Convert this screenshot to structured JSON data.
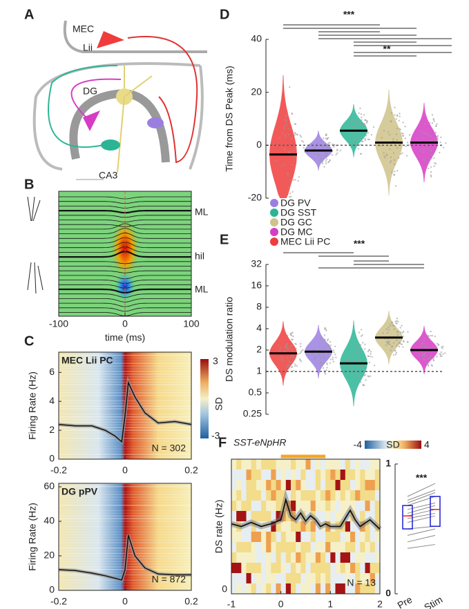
{
  "A": {
    "label": "A",
    "regions": [
      "MEC",
      "Lii",
      "DG",
      "CA3"
    ]
  },
  "B": {
    "label": "B",
    "layers": [
      "ML",
      "hil",
      "ML"
    ],
    "x_label": "time (ms)",
    "xlim": [
      -100,
      100
    ],
    "xticks": [
      -100,
      0,
      100
    ]
  },
  "C": {
    "label": "C",
    "colorbar": {
      "label": "SD",
      "ticks": [
        3,
        -3
      ]
    },
    "plots": [
      {
        "title": "MEC Lii PC",
        "y_label": "Firing Rate (Hz)",
        "n_label": "N = 302",
        "xlim": [
          -0.2,
          0.2
        ],
        "xticks": [
          -0.2,
          0,
          0.2
        ],
        "ylim": [
          0,
          7.4
        ],
        "yticks": [
          0,
          2,
          4,
          6
        ],
        "x": [
          -0.2,
          -0.15,
          -0.1,
          -0.06,
          -0.03,
          -0.01,
          0,
          0.01,
          0.03,
          0.06,
          0.1,
          0.15,
          0.2
        ],
        "values": [
          2.4,
          2.3,
          2.3,
          2.0,
          1.6,
          1.2,
          3.0,
          5.3,
          4.3,
          3.2,
          2.5,
          2.6,
          2.4
        ]
      },
      {
        "title": "DG pPV",
        "y_label": "Firing Rate (Hz)",
        "n_label": "N = 872",
        "xlim": [
          -0.2,
          0.2
        ],
        "xticks": [
          -0.2,
          0,
          0.2
        ],
        "ylim": [
          0,
          62
        ],
        "yticks": [
          0,
          20,
          40,
          60
        ],
        "x": [
          -0.2,
          -0.15,
          -0.1,
          -0.06,
          -0.03,
          -0.01,
          0,
          0.01,
          0.03,
          0.06,
          0.1,
          0.15,
          0.2
        ],
        "values": [
          12,
          11.5,
          10,
          8.5,
          7,
          6,
          12,
          32,
          20,
          13,
          9.5,
          9,
          9
        ]
      }
    ]
  },
  "D": {
    "label": "D",
    "y_label": "Time from DS Peak (ms)",
    "ylim": [
      -20,
      40
    ],
    "yticks": [
      -20,
      0,
      20,
      40
    ],
    "reference": 0,
    "annotations": [
      "***",
      "**"
    ],
    "series": [
      {
        "name": "DG PV",
        "color": "#9b7fe0",
        "median": -2
      },
      {
        "name": "DG SST",
        "color": "#2bb594",
        "median": 5.5
      },
      {
        "name": "DG GC",
        "color": "#cfc28a",
        "median": 1
      },
      {
        "name": "DG MC",
        "color": "#d63cc4",
        "median": 1
      },
      {
        "name": "MEC Lii PC",
        "color": "#f03c3c",
        "median": -3.5
      }
    ]
  },
  "E": {
    "label": "E",
    "y_label": "DS modulation ratio",
    "log_scale": true,
    "ylim": [
      0.25,
      32
    ],
    "yticks": [
      0.25,
      0.5,
      1,
      2,
      4,
      8,
      16,
      32
    ],
    "reference": 1,
    "annotations": [
      "***"
    ],
    "medians": [
      1.9,
      1.3,
      3,
      2,
      1.8
    ]
  },
  "F": {
    "label": "F",
    "title": "SST-eNpHR",
    "colorbar": {
      "label": "SD",
      "ticks": [
        -4,
        4
      ]
    },
    "y_label": "DS rate (Hz)",
    "n_label": "N = 13",
    "xlim": [
      -1,
      2
    ],
    "xticks": [
      -1,
      0,
      1,
      2
    ],
    "ylim": [
      0,
      1
    ],
    "yticks": [
      0
    ],
    "stim_window": [
      0,
      0.9
    ],
    "x": [
      -1,
      -0.8,
      -0.6,
      -0.4,
      -0.2,
      0,
      0.1,
      0.2,
      0.3,
      0.4,
      0.5,
      0.6,
      0.7,
      0.8,
      0.9,
      1,
      1.2,
      1.4,
      1.5,
      1.6,
      1.8,
      2
    ],
    "values": [
      0.52,
      0.5,
      0.53,
      0.5,
      0.52,
      0.55,
      0.7,
      0.58,
      0.55,
      0.6,
      0.54,
      0.58,
      0.55,
      0.5,
      0.52,
      0.5,
      0.5,
      0.62,
      0.55,
      0.5,
      0.55,
      0.48
    ],
    "paired": {
      "annotation": "***",
      "categories": [
        "Pre",
        "Stim"
      ],
      "yticks": [
        0,
        1
      ],
      "ylim": [
        0,
        1
      ],
      "pre": [
        0.35,
        0.4,
        0.45,
        0.5,
        0.55,
        0.58,
        0.6,
        0.62,
        0.65,
        0.68,
        0.7,
        0.72,
        0.75
      ],
      "stim": [
        0.38,
        0.45,
        0.5,
        0.52,
        0.6,
        0.62,
        0.65,
        0.68,
        0.7,
        0.75,
        0.78,
        0.8,
        0.85
      ]
    }
  }
}
